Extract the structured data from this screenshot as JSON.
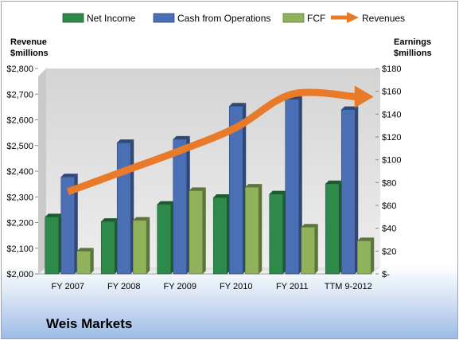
{
  "company": "Weis Markets",
  "chart_data": {
    "type": "bar",
    "categories": [
      "FY 2007",
      "FY 2008",
      "FY 2009",
      "FY 2010",
      "FY 2011",
      "TTM 9-2012"
    ],
    "series": [
      {
        "name": "Net Income",
        "axis": "right",
        "kind": "bar",
        "color": "#2e8a4a",
        "values": [
          50,
          46,
          61,
          67,
          70,
          79
        ]
      },
      {
        "name": "Cash from Operations",
        "axis": "right",
        "kind": "bar",
        "color": "#4a6fb5",
        "values": [
          85,
          115,
          118,
          147,
          153,
          144
        ]
      },
      {
        "name": "FCF",
        "axis": "right",
        "kind": "bar",
        "color": "#8fb25a",
        "values": [
          20,
          47,
          73,
          76,
          41,
          29
        ]
      },
      {
        "name": "Revenues",
        "axis": "left",
        "kind": "arrow",
        "color": "#e87a2a",
        "values": [
          2320,
          2400,
          2480,
          2570,
          2700,
          2690
        ]
      }
    ],
    "left_axis": {
      "label_line1": "Revenue",
      "label_line2": "$millions",
      "range": [
        2000,
        2800
      ],
      "ticks": [
        "$2,000",
        "$2,100",
        "$2,200",
        "$2,300",
        "$2,400",
        "$2,500",
        "$2,600",
        "$2,700",
        "$2,800"
      ]
    },
    "right_axis": {
      "label_line1": "Earnings",
      "label_line2": "$millions",
      "range": [
        0,
        180
      ],
      "ticks": [
        "$-",
        "$20",
        "$40",
        "$60",
        "$80",
        "$100",
        "$120",
        "$140",
        "$160",
        "$180"
      ]
    },
    "legend_position": "top",
    "grid": false
  }
}
